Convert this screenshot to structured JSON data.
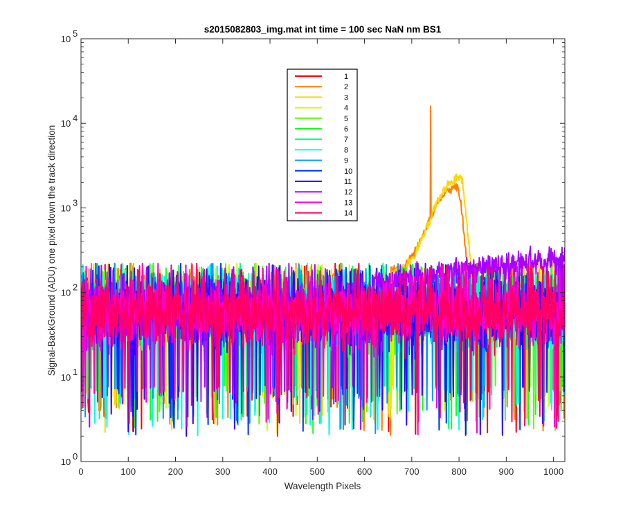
{
  "chart_data": {
    "type": "line",
    "title": "s2015082803_img.mat int time = 100 sec  NaN nm BS1",
    "xlabel": "Wavelength Pixels",
    "ylabel": "Signal-BackGround (ADU) one pixel down the track direction",
    "xlim": [
      0,
      1024
    ],
    "ylim": [
      1,
      100000
    ],
    "yscale": "log",
    "grid": false,
    "legend_position": "upper-middle",
    "x_ticks": [
      0,
      100,
      200,
      300,
      400,
      500,
      600,
      700,
      800,
      900,
      1000
    ],
    "x_tick_labels": [
      "0",
      "100",
      "200",
      "300",
      "400",
      "500",
      "600",
      "700",
      "800",
      "900",
      "1000"
    ],
    "y_ticks": [
      1,
      10,
      100,
      1000,
      10000,
      100000
    ],
    "y_tick_labels": [
      {
        "base": "10",
        "exp": "0"
      },
      {
        "base": "10",
        "exp": "1"
      },
      {
        "base": "10",
        "exp": "2"
      },
      {
        "base": "10",
        "exp": "3"
      },
      {
        "base": "10",
        "exp": "4"
      },
      {
        "base": "10",
        "exp": "5"
      }
    ],
    "series_shape": {
      "noise_floor_median": 60,
      "noise_floor_low": 2,
      "noise_floor_high": 220,
      "right_rise_series": "12",
      "right_rise_level": 250
    },
    "features": [
      {
        "series": "2",
        "x": 740,
        "y": 16000,
        "kind": "spike"
      },
      {
        "series": "2",
        "x": 795,
        "y": 1800,
        "kind": "peak"
      },
      {
        "series": "3",
        "x": 802,
        "y": 2300,
        "kind": "peak"
      }
    ],
    "series": [
      {
        "name": "1",
        "color": "#ff0000"
      },
      {
        "name": "2",
        "color": "#ff7f00"
      },
      {
        "name": "3",
        "color": "#ffd700"
      },
      {
        "name": "4",
        "color": "#ccff00"
      },
      {
        "name": "5",
        "color": "#55ff00"
      },
      {
        "name": "6",
        "color": "#1aff1a"
      },
      {
        "name": "7",
        "color": "#00ff80"
      },
      {
        "name": "8",
        "color": "#00ffe6"
      },
      {
        "name": "9",
        "color": "#0099ff"
      },
      {
        "name": "10",
        "color": "#0033ff"
      },
      {
        "name": "11",
        "color": "#3300ff"
      },
      {
        "name": "12",
        "color": "#aa00ff"
      },
      {
        "name": "13",
        "color": "#ff00cc"
      },
      {
        "name": "14",
        "color": "#ff0066"
      }
    ]
  }
}
